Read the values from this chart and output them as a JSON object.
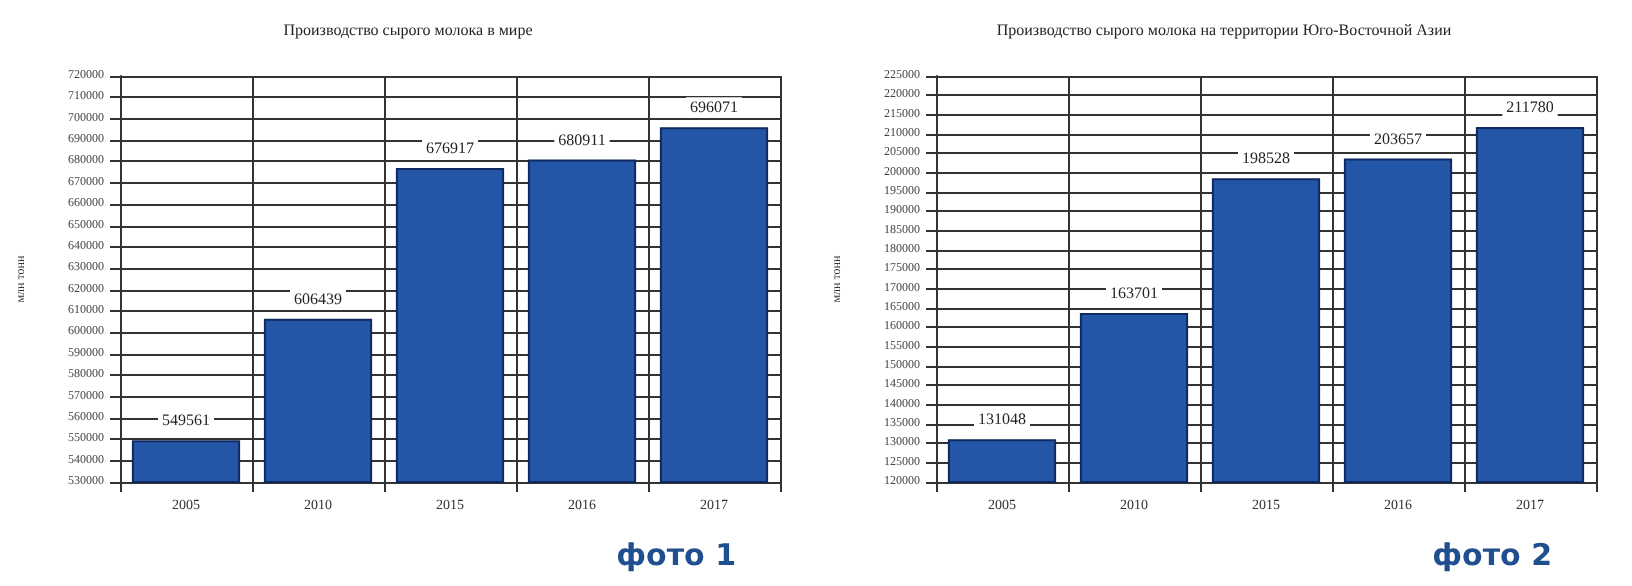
{
  "chart_data": [
    {
      "type": "bar",
      "title": "Производство сырого молока в мире",
      "ylabel": "млн тонн",
      "categories": [
        "2005",
        "2010",
        "2015",
        "2016",
        "2017"
      ],
      "values": [
        549561,
        606439,
        676917,
        680911,
        696071
      ],
      "color": "#2356a6",
      "data_labels": true,
      "ylim": [
        530000,
        720000
      ],
      "yticks": [
        530000,
        540000,
        550000,
        560000,
        570000,
        580000,
        590000,
        600000,
        610000,
        620000,
        630000,
        640000,
        650000,
        660000,
        670000,
        680000,
        690000,
        700000,
        710000,
        720000
      ],
      "grid": true,
      "annotations": [
        "фото 1"
      ]
    },
    {
      "type": "bar",
      "title": "Производство сырого молока на территории Юго-Восточной Азии",
      "ylabel": "млн тонн",
      "categories": [
        "2005",
        "2010",
        "2015",
        "2016",
        "2017"
      ],
      "values": [
        131048,
        163701,
        198528,
        203657,
        211780
      ],
      "color": "#2356a6",
      "data_labels": true,
      "ylim": [
        120000,
        225000
      ],
      "yticks": [
        120000,
        125000,
        130000,
        135000,
        140000,
        145000,
        150000,
        155000,
        160000,
        165000,
        170000,
        175000,
        180000,
        185000,
        190000,
        195000,
        200000,
        205000,
        210000,
        215000,
        220000,
        225000
      ],
      "grid": true,
      "annotations": [
        "фото 2"
      ]
    }
  ]
}
